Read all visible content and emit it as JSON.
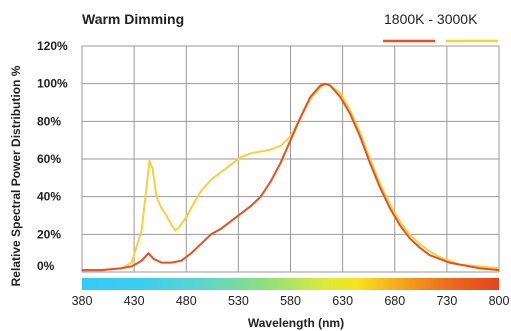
{
  "chart_data": {
    "type": "line",
    "title": "Warm Dimming",
    "legend_label": "1800K - 3000K",
    "xlabel": "Wavelength (nm)",
    "ylabel": "Relative Spectral Power Distribution %",
    "xlim": [
      380,
      800
    ],
    "ylim": [
      0,
      120
    ],
    "x_ticks": [
      "380",
      "430",
      "480",
      "530",
      "580",
      "630",
      "680",
      "730",
      "800"
    ],
    "y_ticks": [
      "0%",
      "20%",
      "40%",
      "60%",
      "80%",
      "100%",
      "120%"
    ],
    "grid": true,
    "legend_position": "top-right",
    "series": [
      {
        "color": "#e8501f",
        "points": [
          [
            380,
            1
          ],
          [
            400,
            1
          ],
          [
            420,
            2
          ],
          [
            430,
            3
          ],
          [
            440,
            6
          ],
          [
            447,
            10
          ],
          [
            452,
            7
          ],
          [
            460,
            5
          ],
          [
            470,
            5
          ],
          [
            480,
            6
          ],
          [
            490,
            10
          ],
          [
            500,
            15
          ],
          [
            510,
            20
          ],
          [
            520,
            23
          ],
          [
            530,
            27
          ],
          [
            540,
            31
          ],
          [
            550,
            35
          ],
          [
            560,
            40
          ],
          [
            570,
            48
          ],
          [
            580,
            58
          ],
          [
            590,
            70
          ],
          [
            600,
            82
          ],
          [
            610,
            93
          ],
          [
            620,
            99
          ],
          [
            625,
            100
          ],
          [
            630,
            99
          ],
          [
            640,
            93
          ],
          [
            650,
            84
          ],
          [
            660,
            72
          ],
          [
            670,
            58
          ],
          [
            680,
            45
          ],
          [
            690,
            34
          ],
          [
            700,
            25
          ],
          [
            710,
            18
          ],
          [
            720,
            13
          ],
          [
            730,
            9
          ],
          [
            740,
            7
          ],
          [
            750,
            5
          ],
          [
            760,
            4
          ],
          [
            780,
            2
          ],
          [
            800,
            1
          ]
        ]
      },
      {
        "color": "#f5d23c",
        "points": [
          [
            380,
            1
          ],
          [
            400,
            1
          ],
          [
            420,
            2
          ],
          [
            430,
            5
          ],
          [
            440,
            22
          ],
          [
            445,
            45
          ],
          [
            448,
            59
          ],
          [
            451,
            55
          ],
          [
            455,
            40
          ],
          [
            460,
            34
          ],
          [
            465,
            30
          ],
          [
            470,
            25
          ],
          [
            474,
            22
          ],
          [
            478,
            24
          ],
          [
            485,
            29
          ],
          [
            492,
            36
          ],
          [
            500,
            43
          ],
          [
            510,
            49
          ],
          [
            520,
            53
          ],
          [
            530,
            57
          ],
          [
            540,
            61
          ],
          [
            550,
            63
          ],
          [
            560,
            64
          ],
          [
            570,
            65
          ],
          [
            580,
            67
          ],
          [
            590,
            72
          ],
          [
            600,
            82
          ],
          [
            610,
            92
          ],
          [
            620,
            98
          ],
          [
            625,
            100
          ],
          [
            630,
            99
          ],
          [
            640,
            95
          ],
          [
            650,
            86
          ],
          [
            660,
            74
          ],
          [
            670,
            60
          ],
          [
            680,
            47
          ],
          [
            690,
            36
          ],
          [
            700,
            27
          ],
          [
            710,
            20
          ],
          [
            720,
            15
          ],
          [
            730,
            11
          ],
          [
            740,
            8
          ],
          [
            750,
            6
          ],
          [
            760,
            4
          ],
          [
            780,
            3
          ],
          [
            800,
            2
          ]
        ]
      }
    ]
  }
}
